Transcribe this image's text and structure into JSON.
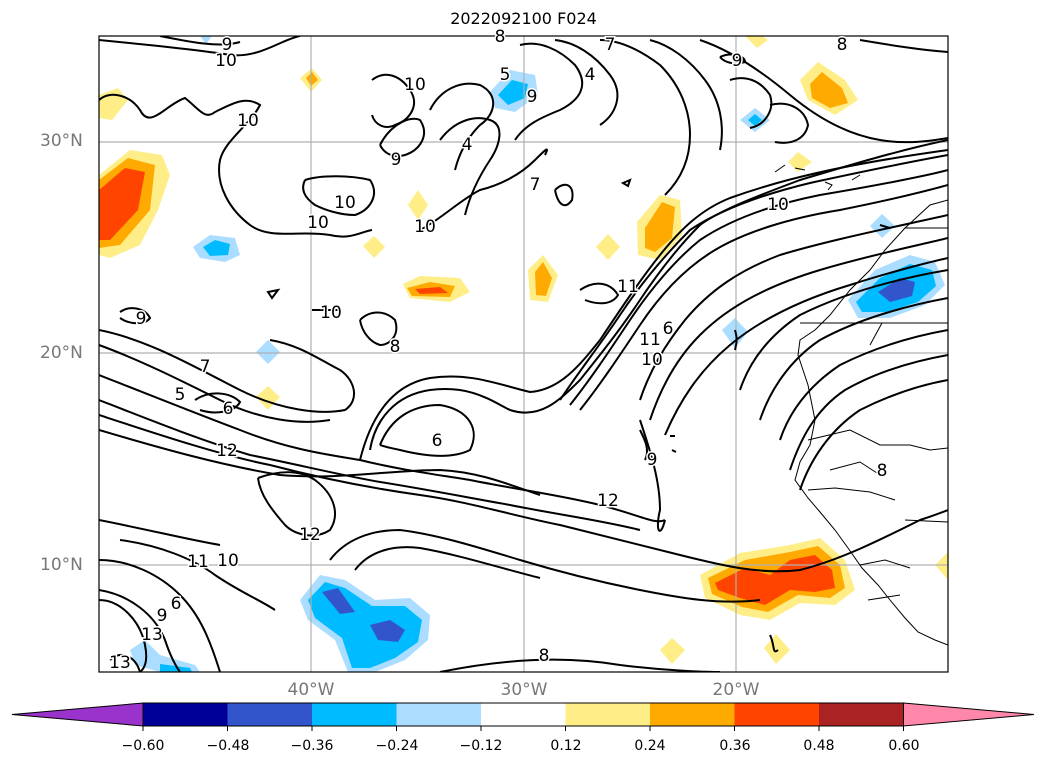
{
  "title": "2022092100 F024",
  "map": {
    "lat_labels": [
      "30°N",
      "20°N",
      "10°N"
    ],
    "lon_labels": [
      "40°W",
      "30°W",
      "20°W"
    ],
    "contour_labels": [
      "9",
      "10",
      "8",
      "7",
      "4",
      "5",
      "9",
      "8",
      "10",
      "9",
      "9",
      "10",
      "10",
      "10",
      "10",
      "7",
      "4",
      "11",
      "10",
      "9",
      "10",
      "8",
      "7",
      "5",
      "6",
      "6",
      "11",
      "10",
      "6",
      "12",
      "9",
      "12",
      "12",
      "11",
      "10",
      "6",
      "9",
      "13",
      "13",
      "8",
      "8"
    ]
  },
  "colorbar": {
    "tick_labels": [
      "−0.60",
      "−0.48",
      "−0.36",
      "−0.24",
      "−0.12",
      "0.12",
      "0.24",
      "0.36",
      "0.48",
      "0.60"
    ],
    "colors": [
      "#9933cc",
      "#000099",
      "#3355cc",
      "#00bbff",
      "#aaddff",
      "#ffffff",
      "#ffee88",
      "#ffaa00",
      "#ff4400",
      "#aa2222",
      "#ff88aa"
    ]
  }
}
